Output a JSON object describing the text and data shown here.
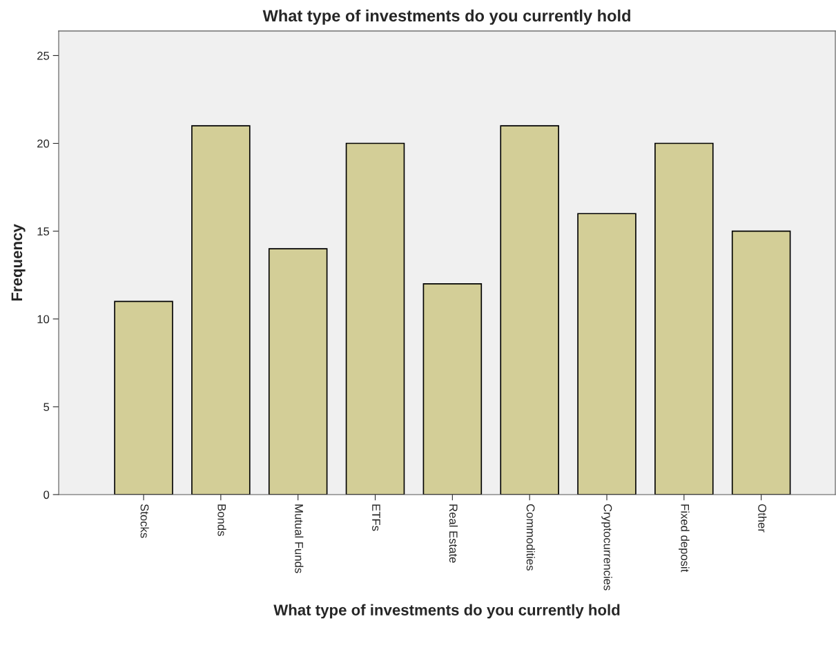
{
  "chart_data": {
    "type": "bar",
    "title": "What type of investments do you currently hold",
    "xlabel": "What type of investments do you currently hold",
    "ylabel": "Frequency",
    "categories": [
      "Stocks",
      "Bonds",
      "Mutual Funds",
      "ETFs",
      "Real Estate",
      "Commodities",
      "Cryptocurrencies",
      "Fixed deposit",
      "Other"
    ],
    "values": [
      11,
      21,
      14,
      20,
      12,
      21,
      16,
      20,
      15
    ],
    "color": "#d3ce97",
    "ylim": [
      0,
      26.4
    ],
    "yticks": [
      0,
      5,
      10,
      15,
      20,
      25
    ],
    "grid": false
  }
}
